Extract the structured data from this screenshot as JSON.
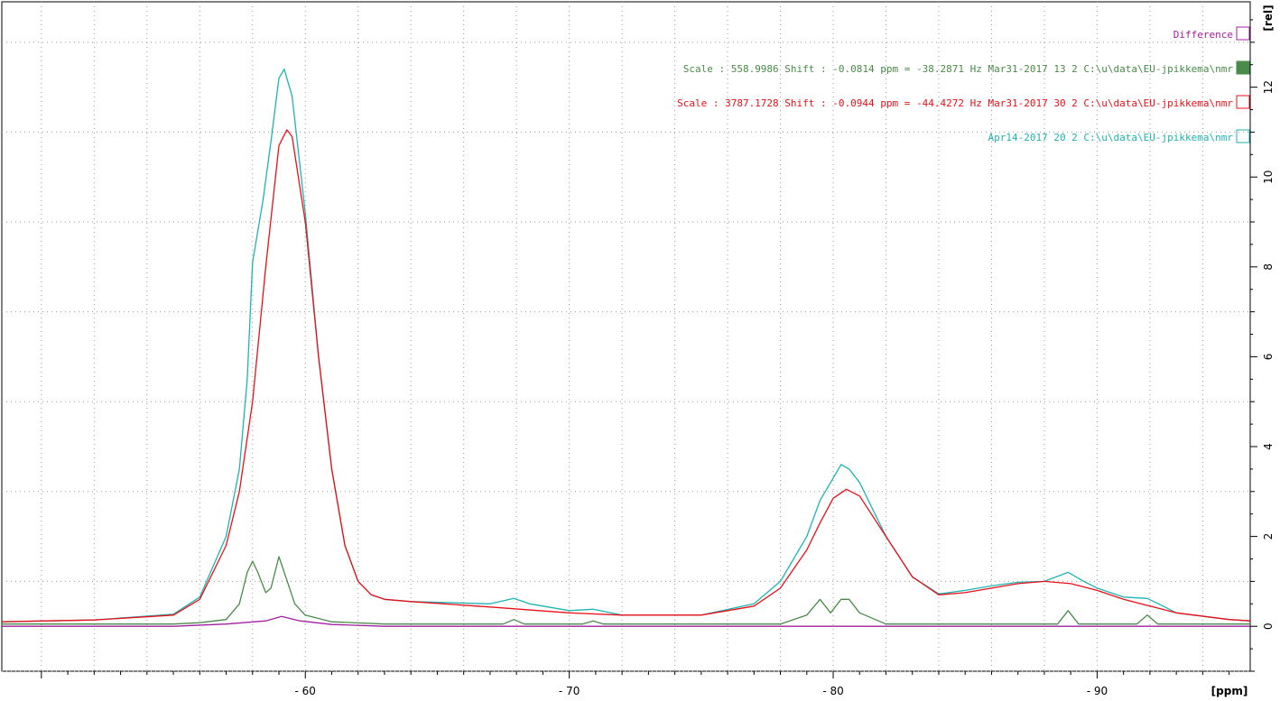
{
  "chart_data": {
    "type": "line",
    "title": "",
    "xlabel": "[ppm]",
    "ylabel": "[rel]",
    "xlim": [
      -48.5,
      -95.8
    ],
    "ylim": [
      -1.0,
      13.9
    ],
    "x_reversed": true,
    "x_ticks": [
      -60,
      -70,
      -80,
      -90
    ],
    "x_tick_labels": [
      "- 60",
      "- 70",
      "- 80",
      "- 90"
    ],
    "y_ticks": [
      0,
      2,
      4,
      6,
      8,
      10,
      12
    ],
    "y_tick_labels": [
      "0",
      "2",
      "4",
      "6",
      "8",
      "10",
      "12"
    ],
    "grid": true,
    "legend_placement": "top-right",
    "series": [
      {
        "name": "Difference",
        "color": "#a020a0",
        "points": [
          [
            -48.5,
            0.0
          ],
          [
            -55,
            0.0
          ],
          [
            -57,
            0.05
          ],
          [
            -58.5,
            0.12
          ],
          [
            -59.1,
            0.22
          ],
          [
            -59.8,
            0.12
          ],
          [
            -61,
            0.04
          ],
          [
            -63,
            0.0
          ],
          [
            -70,
            0.0
          ],
          [
            -80,
            0.0
          ],
          [
            -90,
            0.0
          ],
          [
            -95.8,
            0.0
          ]
        ]
      },
      {
        "name": "Mar31-2017 13 2 C:\\u\\data\\EU-jpikkema\\nmr",
        "legend_text": "Scale : 558.9986 Shift : -0.0814 ppm = -38.2871 Hz   Mar31-2017  13  2  C:\\u\\data\\EU-jpikkema\\nmr",
        "color": "#4a8a4a",
        "marker": "filled",
        "points": [
          [
            -48.5,
            0.05
          ],
          [
            -55,
            0.05
          ],
          [
            -56,
            0.08
          ],
          [
            -57,
            0.15
          ],
          [
            -57.5,
            0.5
          ],
          [
            -57.8,
            1.2
          ],
          [
            -58.0,
            1.45
          ],
          [
            -58.2,
            1.2
          ],
          [
            -58.5,
            0.75
          ],
          [
            -58.7,
            0.85
          ],
          [
            -59.0,
            1.55
          ],
          [
            -59.2,
            1.2
          ],
          [
            -59.6,
            0.5
          ],
          [
            -60,
            0.25
          ],
          [
            -61,
            0.1
          ],
          [
            -63,
            0.05
          ],
          [
            -67.5,
            0.05
          ],
          [
            -67.9,
            0.15
          ],
          [
            -68.3,
            0.05
          ],
          [
            -70.5,
            0.05
          ],
          [
            -70.9,
            0.12
          ],
          [
            -71.3,
            0.05
          ],
          [
            -78,
            0.05
          ],
          [
            -79,
            0.25
          ],
          [
            -79.5,
            0.6
          ],
          [
            -79.9,
            0.3
          ],
          [
            -80.3,
            0.6
          ],
          [
            -80.6,
            0.6
          ],
          [
            -81,
            0.3
          ],
          [
            -82,
            0.05
          ],
          [
            -88.5,
            0.05
          ],
          [
            -88.9,
            0.35
          ],
          [
            -89.3,
            0.05
          ],
          [
            -91.5,
            0.05
          ],
          [
            -91.9,
            0.25
          ],
          [
            -92.3,
            0.05
          ],
          [
            -95.8,
            0.05
          ]
        ]
      },
      {
        "name": "Mar31-2017 30 2 C:\\u\\data\\EU-jpikkema\\nmr",
        "legend_text": "Scale : 3787.1728 Shift : -0.0944 ppm = -44.4272 Hz   Mar31-2017  30  2  C:\\u\\data\\EU-jpikkema\\nmr",
        "color": "#e8101a",
        "marker": "open",
        "points": [
          [
            -48.5,
            0.1
          ],
          [
            -52,
            0.14
          ],
          [
            -55,
            0.25
          ],
          [
            -56,
            0.6
          ],
          [
            -57,
            1.8
          ],
          [
            -57.5,
            3.0
          ],
          [
            -58,
            5.0
          ],
          [
            -58.5,
            8.0
          ],
          [
            -59,
            10.7
          ],
          [
            -59.3,
            11.05
          ],
          [
            -59.5,
            10.9
          ],
          [
            -60,
            9.0
          ],
          [
            -60.5,
            6.0
          ],
          [
            -61,
            3.5
          ],
          [
            -61.5,
            1.8
          ],
          [
            -62,
            1.0
          ],
          [
            -62.5,
            0.7
          ],
          [
            -63,
            0.6
          ],
          [
            -64,
            0.55
          ],
          [
            -67,
            0.43
          ],
          [
            -70,
            0.3
          ],
          [
            -72,
            0.25
          ],
          [
            -75,
            0.25
          ],
          [
            -77,
            0.45
          ],
          [
            -78,
            0.85
          ],
          [
            -79,
            1.7
          ],
          [
            -79.5,
            2.3
          ],
          [
            -80,
            2.85
          ],
          [
            -80.5,
            3.05
          ],
          [
            -81,
            2.9
          ],
          [
            -82,
            2.0
          ],
          [
            -83,
            1.1
          ],
          [
            -84,
            0.7
          ],
          [
            -85,
            0.75
          ],
          [
            -86,
            0.85
          ],
          [
            -87,
            0.95
          ],
          [
            -88,
            1.0
          ],
          [
            -89,
            0.95
          ],
          [
            -90,
            0.8
          ],
          [
            -91,
            0.6
          ],
          [
            -92,
            0.45
          ],
          [
            -93,
            0.3
          ],
          [
            -95,
            0.15
          ],
          [
            -95.8,
            0.12
          ]
        ]
      },
      {
        "name": "Apr14-2017 20 2 C:\\u\\data\\EU-jpikkema\\nmr",
        "legend_text": "Apr14-2017  20  2  C:\\u\\data\\EU-jpikkema\\nmr",
        "color": "#20b2b2",
        "marker": "open",
        "points": [
          [
            -48.5,
            0.1
          ],
          [
            -52,
            0.14
          ],
          [
            -55,
            0.27
          ],
          [
            -56,
            0.65
          ],
          [
            -57,
            2.0
          ],
          [
            -57.5,
            3.5
          ],
          [
            -57.8,
            5.5
          ],
          [
            -58.0,
            8.1
          ],
          [
            -58.4,
            9.5
          ],
          [
            -58.7,
            10.8
          ],
          [
            -59.0,
            12.2
          ],
          [
            -59.2,
            12.4
          ],
          [
            -59.5,
            11.8
          ],
          [
            -60,
            9.2
          ],
          [
            -60.5,
            6.0
          ],
          [
            -61,
            3.5
          ],
          [
            -61.5,
            1.8
          ],
          [
            -62,
            1.0
          ],
          [
            -62.5,
            0.7
          ],
          [
            -63,
            0.6
          ],
          [
            -64,
            0.55
          ],
          [
            -67,
            0.5
          ],
          [
            -67.9,
            0.62
          ],
          [
            -68.5,
            0.5
          ],
          [
            -70,
            0.35
          ],
          [
            -70.9,
            0.38
          ],
          [
            -72,
            0.25
          ],
          [
            -75,
            0.25
          ],
          [
            -77,
            0.5
          ],
          [
            -78,
            1.0
          ],
          [
            -79,
            2.0
          ],
          [
            -79.5,
            2.8
          ],
          [
            -80,
            3.3
          ],
          [
            -80.3,
            3.6
          ],
          [
            -80.6,
            3.5
          ],
          [
            -81,
            3.2
          ],
          [
            -82,
            2.0
          ],
          [
            -83,
            1.1
          ],
          [
            -84,
            0.72
          ],
          [
            -85,
            0.8
          ],
          [
            -86,
            0.9
          ],
          [
            -87,
            0.98
          ],
          [
            -88,
            1.0
          ],
          [
            -88.9,
            1.2
          ],
          [
            -89.5,
            1.0
          ],
          [
            -90,
            0.85
          ],
          [
            -91,
            0.65
          ],
          [
            -91.9,
            0.62
          ],
          [
            -92.5,
            0.45
          ],
          [
            -93,
            0.3
          ],
          [
            -95,
            0.15
          ],
          [
            -95.8,
            0.12
          ]
        ]
      }
    ]
  }
}
